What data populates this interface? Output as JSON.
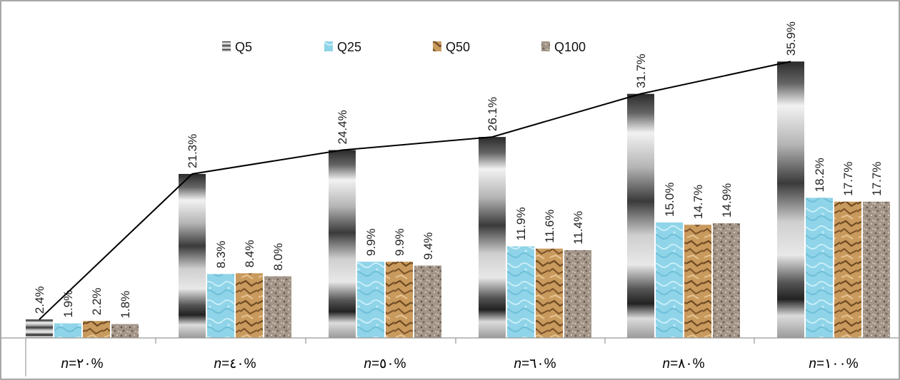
{
  "chart_data": {
    "type": "bar",
    "categories": [
      "n=٢٠%",
      "n=٤٠%",
      "n=٥٠%",
      "n=٦٠%",
      "n=٨٠%",
      "n=١٠٠%"
    ],
    "category_parts": [
      {
        "var": "n",
        "rest": "=٢٠%"
      },
      {
        "var": "n",
        "rest": "=٤٠%"
      },
      {
        "var": "n",
        "rest": "=٥٠%"
      },
      {
        "var": "n",
        "rest": "=٦٠%"
      },
      {
        "var": "n",
        "rest": "=٨٠%"
      },
      {
        "var": "n",
        "rest": "=١٠٠%"
      }
    ],
    "series": [
      {
        "name": "Q5",
        "values": [
          2.4,
          21.3,
          24.4,
          26.1,
          31.7,
          35.9
        ],
        "labels": [
          "2.4%",
          "21.3%",
          "24.4%",
          "26.1%",
          "31.7%",
          "35.9%"
        ]
      },
      {
        "name": "Q25",
        "values": [
          1.9,
          8.3,
          9.9,
          11.9,
          15.0,
          18.2
        ],
        "labels": [
          "1.9%",
          "8.3%",
          "9.9%",
          "11.9%",
          "15.0%",
          "18.2%"
        ]
      },
      {
        "name": "Q50",
        "values": [
          2.2,
          8.4,
          9.9,
          11.6,
          14.7,
          17.7
        ],
        "labels": [
          "2.2%",
          "8.4%",
          "9.9%",
          "11.6%",
          "14.7%",
          "17.7%"
        ]
      },
      {
        "name": "Q100",
        "values": [
          1.8,
          8.0,
          9.4,
          11.4,
          14.9,
          17.7
        ],
        "labels": [
          "1.8%",
          "8.0%",
          "9.4%",
          "11.4%",
          "14.9%",
          "17.7%"
        ]
      }
    ],
    "trend_line": {
      "series": "Q5",
      "values": [
        2.4,
        21.3,
        24.4,
        26.1,
        31.7,
        35.9
      ]
    },
    "ylim": [
      0,
      37
    ],
    "title": "",
    "xlabel": "",
    "ylabel": "",
    "legend_position": "top",
    "grid": false,
    "colors": {
      "Q5": "#6b6b6b",
      "Q25": "#8fd4e8",
      "Q50": "#b9874c",
      "Q100": "#9a8c80",
      "trend": "#000000",
      "axis": "#999999"
    }
  }
}
